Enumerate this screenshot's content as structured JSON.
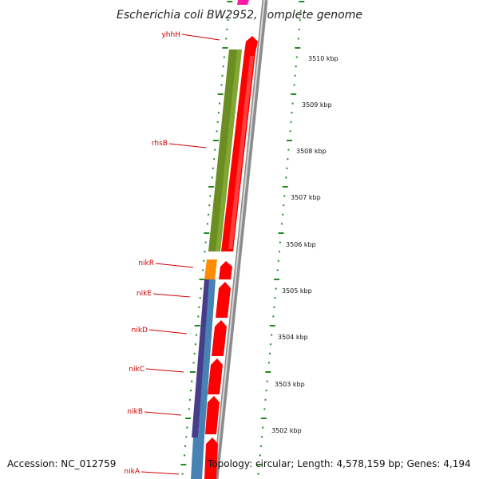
{
  "title": "Escherichia coli BW2952, complete genome",
  "accession_text": "Accession: NC_012759",
  "summary_text": "Topology: circular; Length: 4,578,159 bp; Genes: 4,194",
  "colors": {
    "reverse_gene": "#ff0000",
    "rhsB": "#6b8e23",
    "nikR": "#ff8c00",
    "nikE": "#483d8b",
    "nik_transporter": "#4682b4",
    "top_gene": "#ff00aa",
    "label": "#cc0000",
    "tick": "#228b22",
    "backbone": "#8c8c8c"
  },
  "gene_labels": [
    {
      "name": "yhhH"
    },
    {
      "name": "rhsB"
    },
    {
      "name": "nikR"
    },
    {
      "name": "nikE"
    },
    {
      "name": "nikD"
    },
    {
      "name": "nikC"
    },
    {
      "name": "nikB"
    },
    {
      "name": "nikA"
    }
  ],
  "kbp_ticks": [
    "3510 kbp",
    "3509 kbp",
    "3508 kbp",
    "3507 kbp",
    "3506 kbp",
    "3505 kbp",
    "3504 kbp",
    "3503 kbp",
    "3502 kbp"
  ]
}
